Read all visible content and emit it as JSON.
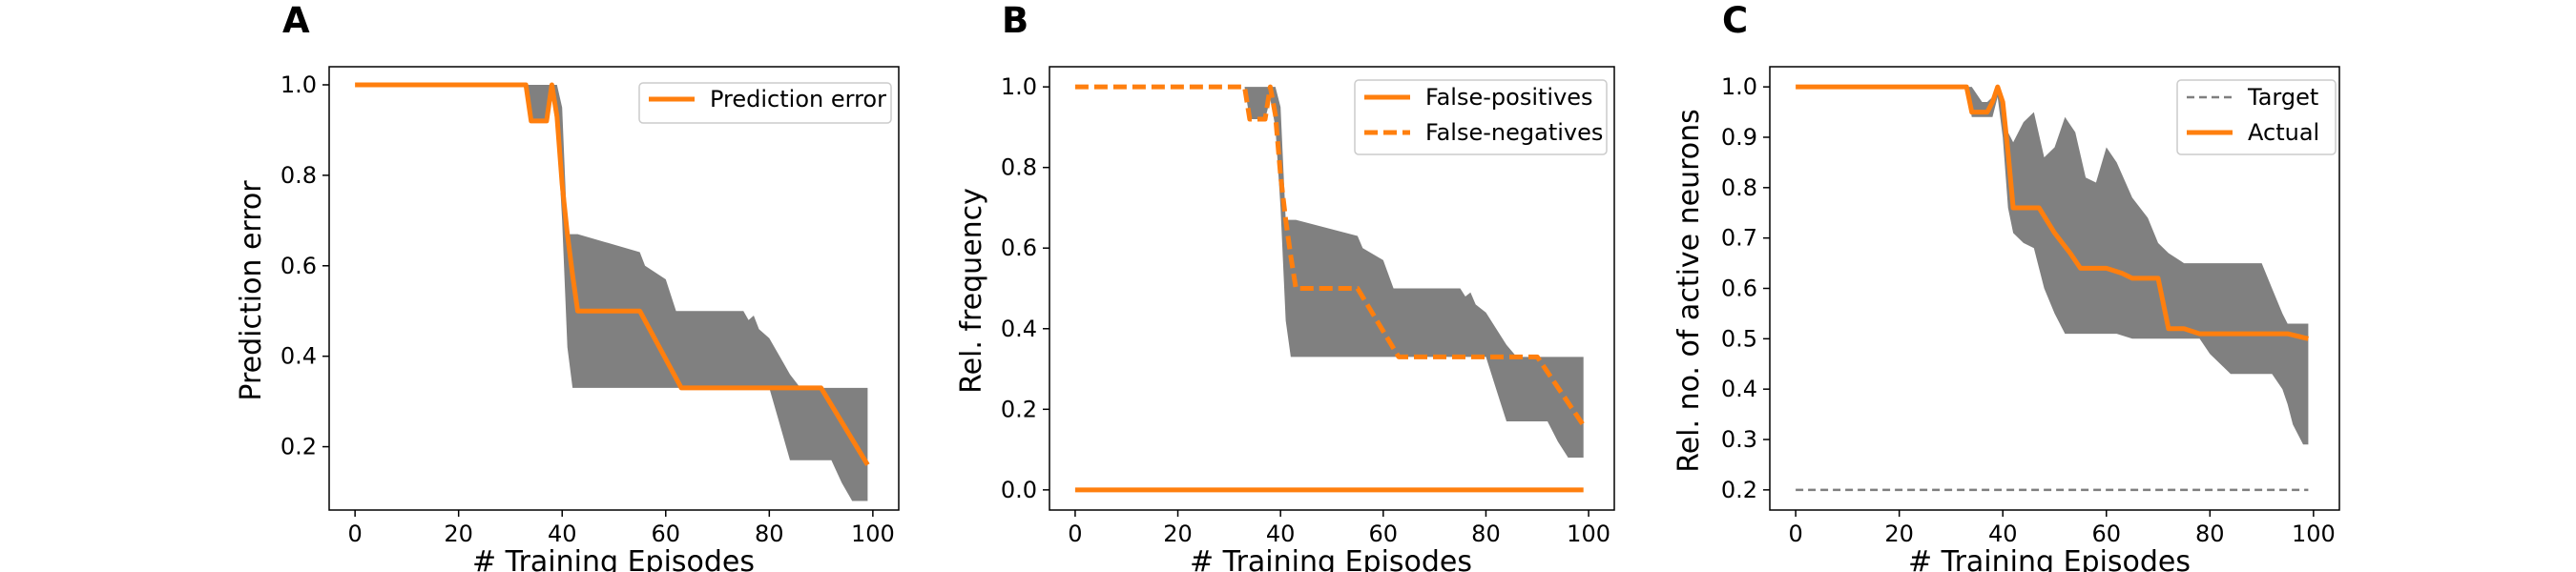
{
  "colors": {
    "series": "#ff7f0e",
    "band": "#808080",
    "target": "#7f7f7f",
    "axis": "#000000",
    "legend_border": "#cccccc"
  },
  "chart_data": [
    {
      "panel": "A",
      "type": "line",
      "xlabel": "# Training Episodes",
      "ylabel": "Prediction error",
      "xlim": [
        -5,
        105
      ],
      "ylim": [
        0.06,
        1.04
      ],
      "xticks": [
        0,
        20,
        40,
        60,
        80,
        100
      ],
      "xtick_labels": [
        "0",
        "20",
        "40",
        "60",
        "80",
        "100"
      ],
      "yticks": [
        0.2,
        0.4,
        0.6,
        0.8,
        1.0
      ],
      "ytick_labels": [
        "0.2",
        "0.4",
        "0.6",
        "0.8",
        "1.0"
      ],
      "legend": "top-right",
      "grid": false,
      "band": {
        "x": [
          0,
          33,
          34,
          36,
          37,
          38,
          39,
          40,
          41,
          42,
          43,
          55,
          56,
          60,
          62,
          65,
          70,
          75,
          76,
          77,
          78,
          80,
          82,
          84,
          86,
          88,
          90,
          92,
          94,
          96,
          97,
          98,
          99
        ],
        "upper": [
          1.0,
          1.0,
          1.0,
          1.0,
          1.0,
          1.0,
          1.0,
          0.95,
          0.67,
          0.67,
          0.67,
          0.63,
          0.6,
          0.57,
          0.5,
          0.5,
          0.5,
          0.5,
          0.48,
          0.49,
          0.46,
          0.44,
          0.4,
          0.36,
          0.33,
          0.33,
          0.33,
          0.33,
          0.33,
          0.33,
          0.33,
          0.33,
          0.33
        ],
        "lower": [
          1.0,
          1.0,
          0.92,
          0.92,
          0.92,
          0.97,
          0.9,
          0.7,
          0.42,
          0.33,
          0.33,
          0.33,
          0.33,
          0.33,
          0.33,
          0.33,
          0.33,
          0.33,
          0.33,
          0.33,
          0.33,
          0.33,
          0.25,
          0.17,
          0.17,
          0.17,
          0.17,
          0.17,
          0.12,
          0.08,
          0.08,
          0.08,
          0.08
        ]
      },
      "series": [
        {
          "name": "Prediction error",
          "style": "solid",
          "x": [
            0,
            33,
            34,
            37,
            38,
            39,
            40,
            41,
            42,
            43,
            55,
            63,
            80,
            90,
            99
          ],
          "y": [
            1.0,
            1.0,
            0.92,
            0.92,
            1.0,
            0.93,
            0.78,
            0.67,
            0.58,
            0.5,
            0.5,
            0.33,
            0.33,
            0.33,
            0.16
          ]
        }
      ]
    },
    {
      "panel": "B",
      "type": "line",
      "xlabel": "# Training Episodes",
      "ylabel": "Rel. frequency",
      "xlim": [
        -5,
        105
      ],
      "ylim": [
        -0.05,
        1.05
      ],
      "xticks": [
        0,
        20,
        40,
        60,
        80,
        100
      ],
      "xtick_labels": [
        "0",
        "20",
        "40",
        "60",
        "80",
        "100"
      ],
      "yticks": [
        0.0,
        0.2,
        0.4,
        0.6,
        0.8,
        1.0
      ],
      "ytick_labels": [
        "0.0",
        "0.2",
        "0.4",
        "0.6",
        "0.8",
        "1.0"
      ],
      "legend": "top-right",
      "grid": false,
      "band": {
        "x": [
          0,
          33,
          34,
          36,
          37,
          38,
          39,
          40,
          41,
          42,
          43,
          55,
          56,
          60,
          62,
          65,
          70,
          75,
          76,
          77,
          78,
          80,
          82,
          84,
          86,
          88,
          90,
          92,
          94,
          96,
          97,
          98,
          99
        ],
        "upper": [
          1.0,
          1.0,
          1.0,
          1.0,
          1.0,
          1.0,
          1.0,
          0.95,
          0.67,
          0.67,
          0.67,
          0.63,
          0.6,
          0.57,
          0.5,
          0.5,
          0.5,
          0.5,
          0.48,
          0.49,
          0.46,
          0.44,
          0.4,
          0.36,
          0.33,
          0.33,
          0.33,
          0.33,
          0.33,
          0.33,
          0.33,
          0.33,
          0.33
        ],
        "lower": [
          1.0,
          1.0,
          0.92,
          0.92,
          0.92,
          0.97,
          0.9,
          0.7,
          0.42,
          0.33,
          0.33,
          0.33,
          0.33,
          0.33,
          0.33,
          0.33,
          0.33,
          0.33,
          0.33,
          0.33,
          0.33,
          0.33,
          0.25,
          0.17,
          0.17,
          0.17,
          0.17,
          0.17,
          0.12,
          0.08,
          0.08,
          0.08,
          0.08
        ]
      },
      "series": [
        {
          "name": "False-positives",
          "style": "solid",
          "x": [
            0,
            99
          ],
          "y": [
            0.0,
            0.0
          ]
        },
        {
          "name": "False-negatives",
          "style": "dashed",
          "x": [
            0,
            33,
            34,
            37,
            38,
            39,
            40,
            41,
            42,
            43,
            55,
            63,
            80,
            90,
            99
          ],
          "y": [
            1.0,
            1.0,
            0.92,
            0.92,
            1.0,
            0.93,
            0.78,
            0.67,
            0.58,
            0.5,
            0.5,
            0.33,
            0.33,
            0.33,
            0.16
          ]
        }
      ]
    },
    {
      "panel": "C",
      "type": "line",
      "xlabel": "# Training Episodes",
      "ylabel": "Rel. no. of active neurons",
      "xlim": [
        -5,
        105
      ],
      "ylim": [
        0.16,
        1.04
      ],
      "xticks": [
        0,
        20,
        40,
        60,
        80,
        100
      ],
      "xtick_labels": [
        "0",
        "20",
        "40",
        "60",
        "80",
        "100"
      ],
      "yticks": [
        0.2,
        0.3,
        0.4,
        0.5,
        0.6,
        0.7,
        0.8,
        0.9,
        1.0
      ],
      "ytick_labels": [
        "0.2",
        "0.3",
        "0.4",
        "0.5",
        "0.6",
        "0.7",
        "0.8",
        "0.9",
        "1.0"
      ],
      "legend": "top-right",
      "grid": false,
      "band": {
        "x": [
          0,
          33,
          34,
          36,
          37,
          38,
          39,
          40,
          41,
          42,
          44,
          46,
          48,
          50,
          52,
          54,
          56,
          58,
          60,
          62,
          65,
          68,
          70,
          72,
          75,
          78,
          80,
          84,
          86,
          88,
          90,
          92,
          94,
          95,
          96,
          97,
          98,
          99
        ],
        "upper": [
          1.0,
          1.0,
          1.0,
          0.97,
          0.97,
          0.98,
          1.0,
          0.97,
          0.91,
          0.89,
          0.93,
          0.95,
          0.86,
          0.88,
          0.94,
          0.91,
          0.82,
          0.81,
          0.88,
          0.85,
          0.78,
          0.74,
          0.69,
          0.67,
          0.65,
          0.65,
          0.65,
          0.65,
          0.65,
          0.65,
          0.65,
          0.6,
          0.55,
          0.53,
          0.53,
          0.53,
          0.53,
          0.53
        ],
        "lower": [
          1.0,
          1.0,
          0.94,
          0.94,
          0.94,
          0.94,
          0.98,
          0.9,
          0.76,
          0.71,
          0.69,
          0.68,
          0.6,
          0.55,
          0.51,
          0.51,
          0.51,
          0.51,
          0.51,
          0.51,
          0.5,
          0.5,
          0.5,
          0.5,
          0.5,
          0.5,
          0.47,
          0.43,
          0.43,
          0.43,
          0.43,
          0.43,
          0.4,
          0.37,
          0.33,
          0.31,
          0.29,
          0.29
        ]
      },
      "series": [
        {
          "name": "Target",
          "style": "thin-dashed",
          "x": [
            0,
            99
          ],
          "y": [
            0.2,
            0.2
          ]
        },
        {
          "name": "Actual",
          "style": "solid",
          "x": [
            0,
            33,
            34,
            36,
            37,
            38,
            39,
            40,
            41,
            42,
            45,
            47,
            50,
            53,
            55,
            60,
            63,
            65,
            67,
            70,
            72,
            75,
            78,
            80,
            85,
            90,
            95,
            99
          ],
          "y": [
            1.0,
            1.0,
            0.95,
            0.95,
            0.95,
            0.97,
            1.0,
            0.97,
            0.87,
            0.76,
            0.76,
            0.76,
            0.71,
            0.67,
            0.64,
            0.64,
            0.63,
            0.62,
            0.62,
            0.62,
            0.52,
            0.52,
            0.51,
            0.51,
            0.51,
            0.51,
            0.51,
            0.5
          ]
        }
      ]
    }
  ]
}
